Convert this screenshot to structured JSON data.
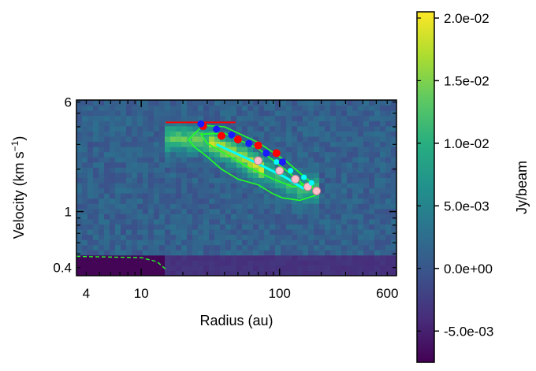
{
  "chart_data": {
    "type": "heatmap",
    "title": "",
    "xlabel": "Radius (au)",
    "ylabel_main": "Velocity (km s",
    "ylabel_sup": "−1",
    "ylabel_close": ")",
    "xscale": "log",
    "yscale": "log",
    "xlim": [
      3.4,
      700
    ],
    "ylim": [
      0.35,
      6.2
    ],
    "x_ticks": [
      {
        "value": 4,
        "label": "4"
      },
      {
        "value": 10,
        "label": "10"
      },
      {
        "value": 100,
        "label": "100"
      },
      {
        "value": 600,
        "label": "600"
      }
    ],
    "y_ticks": [
      {
        "value": 0.4,
        "label": "0.4"
      },
      {
        "value": 1,
        "label": "1"
      },
      {
        "value": 6,
        "label": "6"
      }
    ],
    "colorbar": {
      "label": "Jy/beam",
      "colormap": "viridis",
      "vmin": -0.0075,
      "vmax": 0.0205,
      "ticks": [
        {
          "value": 0.02,
          "label": "2.0e-02"
        },
        {
          "value": 0.015,
          "label": "1.5e-02"
        },
        {
          "value": 0.01,
          "label": "1.0e-02"
        },
        {
          "value": 0.005,
          "label": "5.0e-03"
        },
        {
          "value": 0.0,
          "label": "0.0e+00"
        },
        {
          "value": -0.005,
          "label": "-5.0e-03"
        }
      ]
    },
    "emission_ridge": [
      {
        "r": 25,
        "v": 3.3
      },
      {
        "r": 35,
        "v": 3.0
      },
      {
        "r": 55,
        "v": 2.4
      },
      {
        "r": 90,
        "v": 1.8
      },
      {
        "r": 140,
        "v": 1.45
      }
    ],
    "contour_outer": [
      [
        22,
        3.25
      ],
      [
        28,
        4.1
      ],
      [
        40,
        4.0
      ],
      [
        70,
        3.1
      ],
      [
        110,
        2.3
      ],
      [
        170,
        1.6
      ],
      [
        180,
        1.3
      ],
      [
        140,
        1.2
      ],
      [
        105,
        1.25
      ],
      [
        88,
        1.35
      ],
      [
        70,
        1.55
      ],
      [
        50,
        1.7
      ],
      [
        38,
        2.0
      ],
      [
        30,
        2.45
      ],
      [
        24,
        2.9
      ]
    ],
    "contour_inner": [
      [
        27,
        3.55
      ],
      [
        40,
        3.6
      ],
      [
        70,
        2.8
      ],
      [
        120,
        1.85
      ],
      [
        150,
        1.55
      ],
      [
        125,
        1.5
      ],
      [
        90,
        1.7
      ],
      [
        60,
        2.05
      ],
      [
        40,
        2.6
      ],
      [
        30,
        3.05
      ]
    ],
    "contour_dashed": [
      [
        3.4,
        0.48
      ],
      [
        10,
        0.47
      ],
      [
        13,
        0.44
      ],
      [
        15,
        0.39
      ]
    ],
    "red_line": {
      "r": [
        15,
        48
      ],
      "v": 4.3
    },
    "red_points": [
      [
        28,
        4.05
      ],
      [
        38,
        3.45
      ],
      [
        50,
        3.25
      ],
      [
        70,
        2.95
      ],
      [
        95,
        2.6
      ]
    ],
    "blue_points": [
      [
        27,
        4.2
      ],
      [
        35,
        3.85
      ],
      [
        45,
        3.5
      ],
      [
        60,
        3.05
      ],
      [
        80,
        2.6
      ],
      [
        105,
        2.25
      ]
    ],
    "cyan_line": [
      [
        35,
        3.0
      ],
      [
        60,
        2.35
      ],
      [
        110,
        1.75
      ],
      [
        150,
        1.45
      ]
    ],
    "cyan_points": [
      [
        95,
        2.25
      ],
      [
        120,
        1.95
      ],
      [
        150,
        1.75
      ],
      [
        170,
        1.6
      ]
    ],
    "pink_points": [
      [
        70,
        2.3
      ],
      [
        100,
        1.95
      ],
      [
        130,
        1.7
      ],
      [
        160,
        1.5
      ],
      [
        185,
        1.4
      ]
    ]
  }
}
